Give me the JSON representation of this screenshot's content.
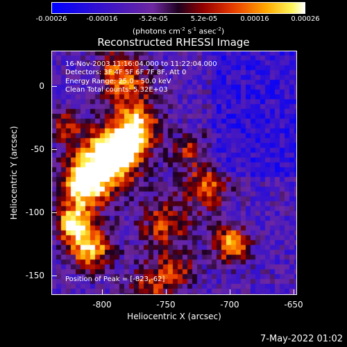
{
  "colorbar": {
    "tick_labels": [
      "-0.00026",
      "-0.00016",
      "-5.2e-05",
      "5.2e-05",
      "0.00016",
      "0.00026"
    ],
    "unit_text": "(photons cm",
    "unit_exp1": "-2",
    "unit_mid": " s",
    "unit_exp2": "-1",
    "unit_tail": " asec",
    "unit_exp3": "-2",
    "unit_close": ")"
  },
  "title": "Reconstructed RHESSI Image",
  "annotations": {
    "time": "16-Nov-2003 11:16:04.000 to 11:22:04.000",
    "detectors": "Detectors: 3F 4F 5F 6F 7F 8F, Att 0",
    "energy": "Energy Range: 25.0 - 50.0 keV",
    "clean": "Clean    Total counts: 5.32E+03",
    "peak": "Position of Peak = [-823,-62]"
  },
  "axes": {
    "xlabel": "Heliocentric X (arcsec)",
    "ylabel": "Heliocentric Y (arcsec)",
    "xticks": [
      "-800",
      "-750",
      "-700",
      "-650"
    ],
    "yticks": [
      "0",
      "-50",
      "-100",
      "-150"
    ]
  },
  "footer": {
    "date": "7-May-2022 01:02"
  }
}
